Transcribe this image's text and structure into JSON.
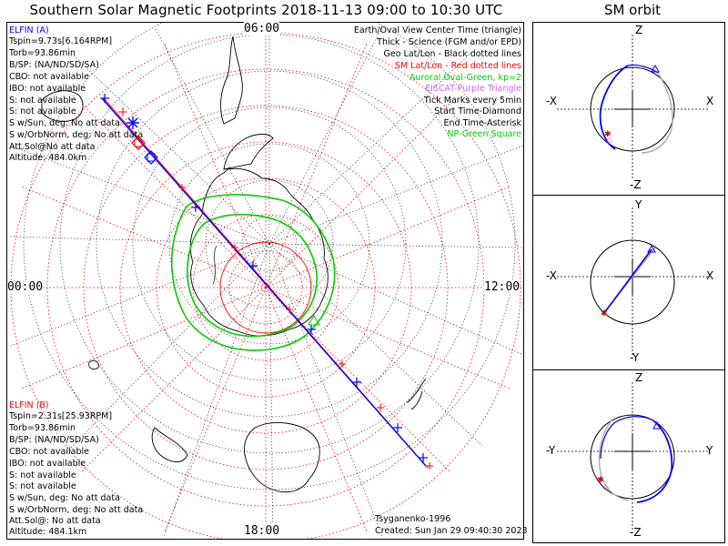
{
  "title": "Southern Solar Magnetic Footprints 2018-11-13 09:00 to 10:30 UTC",
  "orbit_title": "SM orbit",
  "clock_labels": {
    "top": "06:00",
    "left": "00:00",
    "right": "12:00",
    "bottom": "18:00"
  },
  "elfin_a": {
    "header": "ELFIN (A)",
    "lines": [
      "Tspin=9.73s[6.164RPM]",
      "Torb=93.86min",
      "B/SP: (NA/ND/SD/SA)",
      "CBO: not available",
      "IBO: not available",
      "S: not available",
      "S: not available",
      "S w/Sun, deg: No att data",
      "S w/OrbNorm, deg: No att data",
      "Att.Sol@No att data",
      "Altitude: 484.0km"
    ]
  },
  "elfin_b": {
    "header": "ELFIN (B)",
    "lines": [
      "Tspin=2.31s[25.93RPM]",
      "Torb=93.86min",
      "B/SP: (NA/ND/SD/SA)",
      "CBO: not available",
      "IBO: not available",
      "S: not available",
      "S: not available",
      "S w/Sun, deg: No att data",
      "S w/OrbNorm, deg: No att data",
      "Att.Sol@: No att data",
      "Altitude: 484.1km"
    ]
  },
  "legend": [
    {
      "text": "Earth/Oval View Center Time (triangle)",
      "color": "#000000"
    },
    {
      "text": "Thick - Science (FGM and/or EPD)",
      "color": "#000000"
    },
    {
      "text": "Geo Lat/Lon - Black dotted lines",
      "color": "#000000"
    },
    {
      "text": "SM Lat/Lon - Red dotted lines",
      "color": "#ff0000"
    },
    {
      "text": "Auroral Oval-Green, kp=2",
      "color": "#00cc00"
    },
    {
      "text": "EISCAT-Purple Triangle",
      "color": "#cc66ff"
    },
    {
      "text": "Tick Marks every 5min",
      "color": "#000000"
    },
    {
      "text": "Start Time-Diamond",
      "color": "#000000"
    },
    {
      "text": "End Time-Asterisk",
      "color": "#000000"
    },
    {
      "text": "NP-Green Square",
      "color": "#00cc00"
    }
  ],
  "footer": {
    "model": "Tsyganenko-1996",
    "created": "Created: Sun Jan 29 09:40:30 2023"
  },
  "orbit_panels": [
    {
      "top": "Z",
      "bottom": "-Z",
      "left": "-X",
      "right": "X"
    },
    {
      "top": "Y",
      "bottom": "-Y",
      "left": "-X",
      "right": "X"
    },
    {
      "top": "Z",
      "bottom": "-Z",
      "left": "-Y",
      "right": "Y"
    }
  ],
  "colors": {
    "elfin_a": "#0000ff",
    "elfin_b": "#ff0000",
    "oval": "#00cc00",
    "sm_grid": "#ff0000",
    "geo_grid": "#000000"
  }
}
